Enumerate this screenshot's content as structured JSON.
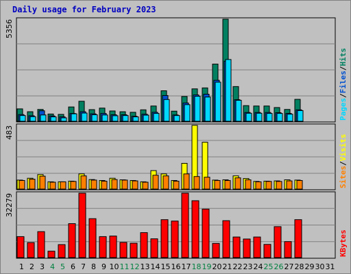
{
  "title": "Daily usage for February 2023",
  "colors": {
    "pages": "#00d8ff",
    "files": "#0050d0",
    "hits": "#008060",
    "sites": "#ff8000",
    "visits": "#ffff00",
    "kbytes": "#ff0000",
    "panel": "#c0c0c0",
    "weekend_label": "#008040",
    "weekday_label": "#000000"
  },
  "chart_data": [
    {
      "type": "bar",
      "title": "Daily usage for February 2023",
      "side_label": {
        "parts": [
          "Pages",
          "Files",
          "Hits"
        ],
        "colors": [
          "#00d8ff",
          "#0050d0",
          "#008060"
        ]
      },
      "ylim": [
        0,
        5356
      ],
      "ymax_label": "5356",
      "categories": [
        "1",
        "2",
        "3",
        "4",
        "5",
        "6",
        "7",
        "8",
        "9",
        "10",
        "11",
        "12",
        "13",
        "14",
        "15",
        "16",
        "17",
        "18",
        "19",
        "20",
        "21",
        "22",
        "23",
        "24",
        "25",
        "26",
        "27",
        "28",
        "29",
        "30",
        "31"
      ],
      "series": [
        {
          "name": "Hits",
          "color": "#008060",
          "values": [
            650,
            500,
            620,
            380,
            360,
            750,
            1050,
            610,
            690,
            540,
            500,
            470,
            600,
            800,
            1600,
            530,
            1300,
            1700,
            1750,
            3000,
            5356,
            1820,
            820,
            800,
            800,
            720,
            620,
            1150,
            0,
            0,
            0
          ]
        },
        {
          "name": "Files",
          "color": "#0050d0",
          "values": [
            350,
            290,
            550,
            280,
            230,
            410,
            500,
            390,
            410,
            340,
            340,
            260,
            370,
            470,
            1350,
            330,
            960,
            1380,
            1420,
            2150,
            3150,
            1130,
            460,
            460,
            460,
            450,
            410,
            600,
            0,
            0,
            0
          ]
        },
        {
          "name": "Pages",
          "color": "#00d8ff",
          "values": [
            300,
            240,
            330,
            230,
            180,
            390,
            430,
            340,
            330,
            290,
            300,
            230,
            320,
            410,
            1140,
            300,
            870,
            1310,
            1270,
            2050,
            3240,
            1100,
            420,
            420,
            410,
            410,
            370,
            560,
            0,
            0,
            0
          ]
        }
      ]
    },
    {
      "type": "bar",
      "side_label": {
        "parts": [
          "Sites",
          "Visits"
        ],
        "colors": [
          "#ff8000",
          "#ffff00"
        ]
      },
      "ylim": [
        0,
        483
      ],
      "ymax_label": "483",
      "categories": [
        "1",
        "2",
        "3",
        "4",
        "5",
        "6",
        "7",
        "8",
        "9",
        "10",
        "11",
        "12",
        "13",
        "14",
        "15",
        "16",
        "17",
        "18",
        "19",
        "20",
        "21",
        "22",
        "23",
        "24",
        "25",
        "26",
        "27",
        "28",
        "29",
        "30",
        "31"
      ],
      "series": [
        {
          "name": "Visits",
          "color": "#ffff00",
          "values": [
            68,
            82,
            110,
            55,
            55,
            60,
            115,
            72,
            65,
            82,
            70,
            65,
            55,
            140,
            115,
            65,
            195,
            483,
            355,
            68,
            70,
            100,
            80,
            58,
            60,
            62,
            70,
            68,
            0,
            0,
            0
          ]
        },
        {
          "name": "Sites",
          "color": "#ff8000",
          "values": [
            65,
            75,
            98,
            52,
            55,
            58,
            100,
            68,
            60,
            72,
            68,
            62,
            52,
            105,
            100,
            60,
            115,
            95,
            90,
            65,
            65,
            85,
            70,
            55,
            58,
            58,
            62,
            65,
            0,
            0,
            0
          ]
        }
      ]
    },
    {
      "type": "bar",
      "side_label": {
        "parts": [
          "KBytes"
        ],
        "colors": [
          "#ff0000"
        ]
      },
      "ylim": [
        0,
        32279
      ],
      "ymax_label": "32279",
      "categories": [
        "1",
        "2",
        "3",
        "4",
        "5",
        "6",
        "7",
        "8",
        "9",
        "10",
        "11",
        "12",
        "13",
        "14",
        "15",
        "16",
        "17",
        "18",
        "19",
        "20",
        "21",
        "22",
        "23",
        "24",
        "25",
        "26",
        "27",
        "28",
        "29",
        "30",
        "31"
      ],
      "series": [
        {
          "name": "KBytes",
          "color": "#ff0000",
          "values": [
            10500,
            7500,
            13000,
            3200,
            6500,
            17000,
            32279,
            19500,
            10500,
            10800,
            7600,
            7200,
            12500,
            9400,
            19000,
            18300,
            32279,
            28500,
            24300,
            7100,
            18500,
            10300,
            9300,
            10300,
            6600,
            15500,
            8000,
            19000,
            0,
            0,
            0
          ]
        }
      ]
    }
  ],
  "x_labels": [
    {
      "day": "1",
      "weekend": false
    },
    {
      "day": "2",
      "weekend": false
    },
    {
      "day": "3",
      "weekend": false
    },
    {
      "day": "4",
      "weekend": true
    },
    {
      "day": "5",
      "weekend": true
    },
    {
      "day": "6",
      "weekend": false
    },
    {
      "day": "7",
      "weekend": false
    },
    {
      "day": "8",
      "weekend": false
    },
    {
      "day": "9",
      "weekend": false
    },
    {
      "day": "10",
      "weekend": false
    },
    {
      "day": "11",
      "weekend": true
    },
    {
      "day": "12",
      "weekend": true
    },
    {
      "day": "13",
      "weekend": false
    },
    {
      "day": "14",
      "weekend": false
    },
    {
      "day": "15",
      "weekend": false
    },
    {
      "day": "16",
      "weekend": false
    },
    {
      "day": "17",
      "weekend": false
    },
    {
      "day": "18",
      "weekend": true
    },
    {
      "day": "19",
      "weekend": true
    },
    {
      "day": "20",
      "weekend": false
    },
    {
      "day": "21",
      "weekend": false
    },
    {
      "day": "22",
      "weekend": false
    },
    {
      "day": "23",
      "weekend": false
    },
    {
      "day": "24",
      "weekend": false
    },
    {
      "day": "25",
      "weekend": true
    },
    {
      "day": "26",
      "weekend": true
    },
    {
      "day": "27",
      "weekend": false
    },
    {
      "day": "28",
      "weekend": false
    },
    {
      "day": "29",
      "weekend": false
    },
    {
      "day": "30",
      "weekend": false
    },
    {
      "day": "31",
      "weekend": false
    }
  ]
}
